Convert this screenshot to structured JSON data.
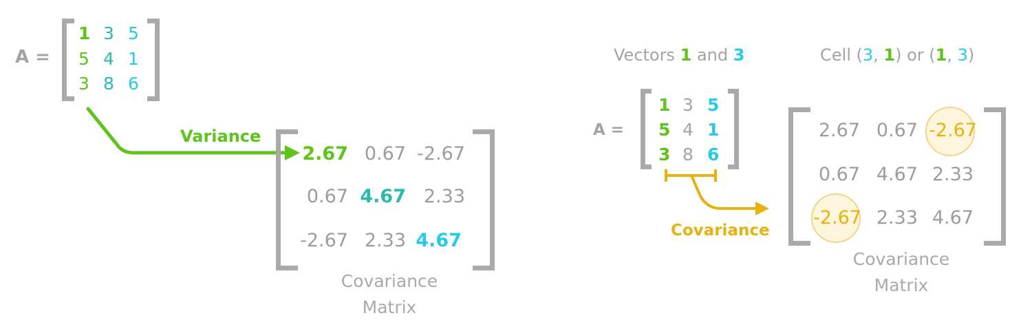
{
  "colors": {
    "green": "#5ec31a",
    "teal": "#2bb9ad",
    "cyan": "#27cbe8",
    "yellow": "#e8b110",
    "gray": "#a3a3a3",
    "bracket": "#a9a9a9"
  },
  "left": {
    "a_label": "A =",
    "matrix_a": [
      [
        "1",
        "3",
        "5"
      ],
      [
        "5",
        "4",
        "1"
      ],
      [
        "3",
        "8",
        "6"
      ]
    ],
    "arrow_label": "Variance",
    "cov_matrix": [
      [
        "2.67",
        "0.67",
        "-2.67"
      ],
      [
        "0.67",
        "4.67",
        "2.33"
      ],
      [
        "-2.67",
        "2.33",
        "4.67"
      ]
    ],
    "caption_line1": "Covariance",
    "caption_line2": "Matrix"
  },
  "right": {
    "vectors_label": {
      "prefix": "Vectors ",
      "v1": "1",
      "mid": " and ",
      "v2": "3"
    },
    "cell_label": {
      "prefix": "Cell (",
      "a": "3",
      "sep1": ", ",
      "b": "1",
      "mid": ") or (",
      "c": "1",
      "sep2": ", ",
      "d": "3",
      "suffix": ")"
    },
    "a_label": "A =",
    "matrix_a": [
      [
        "1",
        "3",
        "5"
      ],
      [
        "5",
        "4",
        "1"
      ],
      [
        "3",
        "8",
        "6"
      ]
    ],
    "arrow_label": "Covariance",
    "cov_matrix": [
      [
        "2.67",
        "0.67",
        "-2.67"
      ],
      [
        "0.67",
        "4.67",
        "2.33"
      ],
      [
        "-2.67",
        "2.33",
        "4.67"
      ]
    ],
    "caption_line1": "Covariance",
    "caption_line2": "Matrix"
  }
}
